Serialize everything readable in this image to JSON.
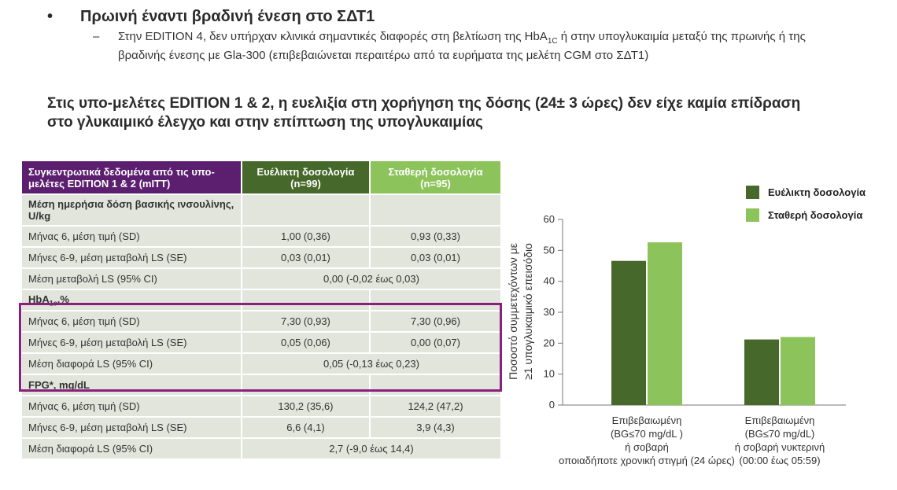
{
  "header": {
    "bullet": "•",
    "title": "Πρωινή έναντι βραδινή ένεση στο ΣΔΤ1",
    "sub_dash": "–",
    "sub_pre": "Στην EDITION 4, δεν υπήρχαν κλινικά σημαντικές διαφορές στη βελτίωση της HbA",
    "sub_sub": "1C",
    "sub_post": " ή στην υπογλυκαιμία μεταξύ της πρωινής ή της βραδινής ένεσης με Gla-300 (επιβεβαιώνεται περαιτέρω από τα ευρήματα της μελέτη CGM στο ΣΔΤ1)",
    "headline": "Στις υπο-μελέτες EDITION 1 & 2, η ευελιξία στη χορήγηση της δόσης (24± 3 ώρες) δεν είχε καμία επίδραση στο γλυκαιμικό έλεγχο και στην επίπτωση της υπογλυκαιμίας"
  },
  "table": {
    "col0": "Συγκεντρωτικά δεδομένα από τις υπο-μελέτες EDITION 1 & 2 (mITT)",
    "col1": "Ευέλικτη δοσολογία (n=99)",
    "col2": "Σταθερή δοσολογία (n=95)",
    "sec1": "Μέση ημερήσια δόση βασικής ινσουλίνης, U/kg",
    "r1": {
      "label": "Μήνας 6, μέση τιμή (SD)",
      "a": "1,00 (0,36)",
      "b": "0,93 (0,33)"
    },
    "r2": {
      "label": "Μήνες 6-9, μέση μεταβολή LS (SE)",
      "a": "0,03 (0,01)",
      "b": "0,03 (0,01)"
    },
    "r3": {
      "label": "Μέση μεταβολή LS (95% CI)",
      "v": "0,00 (-0,02 έως 0,03)"
    },
    "sec2_pre": "HbA",
    "sec2_sub": "1c",
    "sec2_post": ",%",
    "r4": {
      "label": "Μήνας 6, μέση τιμή (SD)",
      "a": "7,30 (0,93)",
      "b": "7,30 (0,96)"
    },
    "r5": {
      "label": "Μήνες 6-9, μέση μεταβολή LS (SE)",
      "a": "0,05 (0,06)",
      "b": "0,00 (0,07)"
    },
    "r6": {
      "label": "Μέση διαφορά LS (95% CI)",
      "v": "0,05 (-0,13 έως 0,23)"
    },
    "sec3": "FPG*, mg/dL",
    "r7": {
      "label": "Μήνας 6, μέση τιμή (SD)",
      "a": "130,2 (35,6)",
      "b": "124,2 (47,2)"
    },
    "r8": {
      "label": "Μήνες 6-9, μέση μεταβολή LS (SE)",
      "a": "6,6 (4,1)",
      "b": "3,9 (4,3)"
    },
    "r9": {
      "label": "Μέση διαφορά LS (95% CI)",
      "v": "2,7 (-9,0 έως 14,4)"
    }
  },
  "legend": {
    "flex": "Ευέλικτη δοσολογία",
    "fixed": "Σταθερή δοσολογία",
    "flex_color": "#46682a",
    "fixed_color": "#8cc35a"
  },
  "chart_data": {
    "type": "bar",
    "ylabel_1": "Ποσοστό συμμετεχόντων με",
    "ylabel_2": "≥1 υπογλυκαιμικό επεισόδιο",
    "ylim": [
      0,
      60
    ],
    "yticks": [
      "0",
      "10",
      "20",
      "30",
      "40",
      "50",
      "60"
    ],
    "categories": [
      {
        "l1": "Επιβεβαιωμένη",
        "l2": "(BG≤70 mg/dL )",
        "l3": "ή σοβαρή",
        "l4": "οποιαδήποτε χρονική στιγμή (24 ώρες)"
      },
      {
        "l1": "Επιβεβαιωμένη",
        "l2": "(BG≤70 mg/dL)",
        "l3": "ή σοβαρή νυκτερινή",
        "l4": "(00:00 έως 05:59)"
      }
    ],
    "series": [
      {
        "name": "Ευέλικτη δοσολογία",
        "values": [
          46.6,
          21.2
        ]
      },
      {
        "name": "Σταθερή δοσολογία",
        "values": [
          52.6,
          22.0
        ]
      }
    ]
  }
}
